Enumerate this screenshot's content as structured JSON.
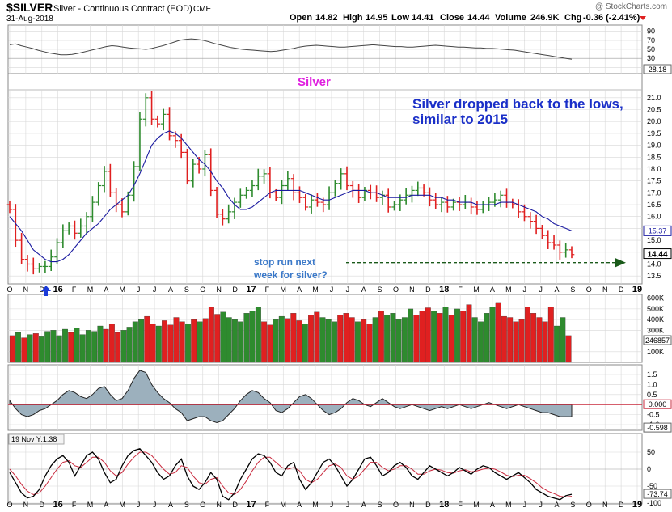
{
  "header": {
    "symbol": "$SILVER",
    "description": "Silver - Continuous Contract (EOD)",
    "exchange": "CME",
    "date": "31-Aug-2018",
    "watermark": "@ StockCharts.com",
    "quote": {
      "open_label": "Open",
      "open": "14.82",
      "high_label": "High",
      "high": "14.95",
      "low_label": "Low",
      "low": "14.41",
      "close_label": "Close",
      "close": "14.44",
      "volume_label": "Volume",
      "volume": "246.9K",
      "chg_label": "Chg",
      "chg": "-0.36 (-2.41%)"
    }
  },
  "colors": {
    "up": "#2e8b2e",
    "down": "#e02020",
    "ma": "#1a1aa0",
    "title_magenta": "#e020e0",
    "annotation_blue": "#1a2fc8",
    "annotation_light": "#3a78c8",
    "grid": "#d8d8d8",
    "arrow": "#1a5a1a",
    "hist_fill": "#9cb0bd",
    "signal": "#c8283c"
  },
  "chart_data": [
    {
      "type": "line",
      "name": "rsi-panel",
      "y_ticks": [
        "90",
        "70",
        "50",
        "30",
        "10"
      ],
      "last_value_label": "28.18",
      "ylim": [
        0,
        100
      ],
      "values": [
        60,
        62,
        58,
        55,
        52,
        48,
        45,
        42,
        40,
        38,
        38,
        39,
        41,
        44,
        47,
        50,
        53,
        56,
        58,
        57,
        55,
        53,
        52,
        51,
        50,
        52,
        55,
        58,
        62,
        66,
        70,
        72,
        73,
        72,
        70,
        67,
        63,
        60,
        57,
        54,
        52,
        50,
        49,
        48,
        47,
        46,
        45,
        46,
        48,
        50,
        52,
        55,
        57,
        58,
        59,
        58,
        57,
        56,
        55,
        55,
        56,
        57,
        58,
        59,
        60,
        59,
        58,
        57,
        56,
        56,
        55,
        55,
        56,
        57,
        58,
        59,
        58,
        57,
        56,
        55,
        55,
        54,
        53,
        53,
        52,
        52,
        51,
        50,
        49,
        48,
        46,
        44,
        42,
        40,
        38,
        36,
        34,
        32,
        30,
        28
      ]
    },
    {
      "type": "bar",
      "name": "price-panel",
      "title": "Silver",
      "ylim": [
        13.2,
        21.3
      ],
      "y_ticks": [
        "21.0",
        "20.5",
        "20.0",
        "19.5",
        "19.0",
        "18.5",
        "18.0",
        "17.5",
        "17.0",
        "16.5",
        "16.0",
        "15.5",
        "15.0",
        "14.5",
        "14.0",
        "13.5"
      ],
      "x_labels": [
        "O",
        "N",
        "D",
        "16",
        "F",
        "M",
        "A",
        "M",
        "J",
        "J",
        "A",
        "S",
        "O",
        "N",
        "D",
        "17",
        "F",
        "M",
        "A",
        "M",
        "J",
        "J",
        "A",
        "S",
        "O",
        "N",
        "D",
        "18",
        "F",
        "M",
        "A",
        "M",
        "J",
        "J",
        "A",
        "S",
        "O",
        "N",
        "D",
        "19"
      ],
      "ma_label": "15.37",
      "last_label": "14.44",
      "support_level": 14.06,
      "closes": [
        16.3,
        15.0,
        14.2,
        14.0,
        13.8,
        13.9,
        13.9,
        14.3,
        14.9,
        15.4,
        15.6,
        15.3,
        15.6,
        16.0,
        16.6,
        17.3,
        17.9,
        17.0,
        16.5,
        16.2,
        16.9,
        18.1,
        20.1,
        21.0,
        20.1,
        19.9,
        20.3,
        19.4,
        19.2,
        18.7,
        17.5,
        18.2,
        18.0,
        18.6,
        17.1,
        16.1,
        15.9,
        16.2,
        16.6,
        16.9,
        17.1,
        17.3,
        17.7,
        17.8,
        17.0,
        16.8,
        17.3,
        17.6,
        17.0,
        16.8,
        16.4,
        16.7,
        16.6,
        16.5,
        17.0,
        17.4,
        17.8,
        17.3,
        17.1,
        16.8,
        17.1,
        17.0,
        16.8,
        16.9,
        16.4,
        16.5,
        16.7,
        16.9,
        17.1,
        17.2,
        17.0,
        16.7,
        16.5,
        16.6,
        16.4,
        16.6,
        16.5,
        16.6,
        16.4,
        16.3,
        16.5,
        16.6,
        16.7,
        16.9,
        16.6,
        16.5,
        16.2,
        16.0,
        15.8,
        15.5,
        15.2,
        14.9,
        14.8,
        14.5,
        14.6,
        14.4
      ],
      "ma": [
        16.0,
        15.7,
        15.4,
        15.0,
        14.6,
        14.4,
        14.2,
        14.1,
        14.1,
        14.2,
        14.4,
        14.7,
        15.0,
        15.3,
        15.5,
        15.7,
        16.0,
        16.3,
        16.5,
        16.7,
        16.9,
        17.3,
        17.8,
        18.4,
        19.0,
        19.3,
        19.5,
        19.6,
        19.5,
        19.3,
        19.0,
        18.7,
        18.4,
        18.2,
        17.9,
        17.5,
        17.2,
        16.8,
        16.5,
        16.3,
        16.3,
        16.4,
        16.6,
        16.8,
        17.0,
        17.1,
        17.1,
        17.1,
        17.1,
        17.1,
        17.0,
        16.9,
        16.8,
        16.7,
        16.7,
        16.8,
        16.9,
        17.0,
        17.1,
        17.1,
        17.1,
        17.0,
        17.0,
        16.9,
        16.8,
        16.8,
        16.8,
        16.8,
        16.9,
        16.9,
        16.9,
        16.9,
        16.8,
        16.8,
        16.7,
        16.7,
        16.6,
        16.6,
        16.6,
        16.5,
        16.5,
        16.5,
        16.5,
        16.6,
        16.6,
        16.6,
        16.5,
        16.4,
        16.3,
        16.2,
        16.0,
        15.9,
        15.7,
        15.6,
        15.5,
        15.4
      ]
    },
    {
      "type": "bar",
      "name": "volume-panel",
      "ylim": [
        0,
        620
      ],
      "y_ticks": [
        "600K",
        "500K",
        "400K",
        "300K",
        "200K",
        "100K"
      ],
      "last_value_label": "246857",
      "values": [
        250,
        280,
        230,
        260,
        270,
        240,
        290,
        300,
        250,
        310,
        280,
        320,
        260,
        300,
        290,
        340,
        310,
        360,
        280,
        300,
        330,
        380,
        400,
        430,
        360,
        340,
        390,
        350,
        420,
        380,
        360,
        400,
        380,
        410,
        520,
        450,
        470,
        420,
        400,
        380,
        460,
        480,
        520,
        380,
        350,
        400,
        430,
        410,
        460,
        390,
        360,
        440,
        470,
        420,
        400,
        380,
        440,
        460,
        420,
        380,
        400,
        360,
        420,
        480,
        440,
        460,
        400,
        420,
        500,
        440,
        480,
        510,
        480,
        460,
        520,
        440,
        500,
        480,
        540,
        420,
        380,
        460,
        520,
        560,
        430,
        420,
        380,
        400,
        520,
        460,
        420,
        380,
        520,
        340,
        420,
        250
      ],
      "up_flags": [
        0,
        1,
        0,
        1,
        0,
        1,
        1,
        1,
        1,
        1,
        0,
        1,
        1,
        1,
        1,
        1,
        0,
        0,
        0,
        1,
        1,
        1,
        1,
        0,
        0,
        1,
        0,
        0,
        0,
        0,
        1,
        0,
        1,
        0,
        0,
        0,
        1,
        1,
        1,
        1,
        1,
        1,
        1,
        0,
        0,
        1,
        1,
        0,
        0,
        0,
        1,
        0,
        0,
        1,
        1,
        1,
        0,
        0,
        0,
        1,
        0,
        0,
        1,
        0,
        1,
        1,
        1,
        1,
        1,
        0,
        0,
        0,
        1,
        0,
        1,
        0,
        1,
        0,
        0,
        1,
        1,
        1,
        1,
        0,
        0,
        0,
        0,
        0,
        0,
        0,
        0,
        0,
        0,
        1,
        1,
        0
      ]
    },
    {
      "type": "area",
      "name": "macd-histogram-panel",
      "ylim": [
        -1.2,
        1.9
      ],
      "y_ticks": [
        "1.5",
        "1.0",
        "0.5",
        "-0.5",
        "-1.0"
      ],
      "zero_label": "0.000",
      "last_value_label": "-0.598",
      "values": [
        0.2,
        -0.2,
        -0.5,
        -0.6,
        -0.5,
        -0.3,
        -0.2,
        0.0,
        0.2,
        0.5,
        0.7,
        0.6,
        0.4,
        0.3,
        0.5,
        0.8,
        0.9,
        0.5,
        0.2,
        0.3,
        0.7,
        1.3,
        1.7,
        1.6,
        1.0,
        0.6,
        0.3,
        0.1,
        -0.2,
        -0.4,
        -0.8,
        -0.7,
        -0.6,
        -0.6,
        -0.8,
        -0.9,
        -0.8,
        -0.5,
        -0.2,
        0.2,
        0.5,
        0.7,
        0.6,
        0.3,
        0.1,
        -0.3,
        -0.4,
        -0.2,
        0.1,
        0.4,
        0.5,
        0.3,
        0.0,
        -0.3,
        -0.5,
        -0.4,
        -0.2,
        0.1,
        0.3,
        0.2,
        0.0,
        -0.1,
        0.1,
        0.3,
        0.1,
        -0.1,
        -0.2,
        -0.1,
        0.0,
        -0.1,
        -0.2,
        -0.3,
        -0.2,
        -0.1,
        -0.2,
        -0.1,
        0.0,
        -0.1,
        -0.2,
        -0.1,
        0.0,
        0.1,
        0.0,
        -0.1,
        -0.2,
        -0.1,
        0.0,
        -0.1,
        -0.2,
        -0.3,
        -0.4,
        -0.4,
        -0.5,
        -0.6,
        -0.6,
        -0.6
      ]
    },
    {
      "type": "line",
      "name": "stochastic-panel",
      "tag": "19 Nov Y:1.38",
      "ylim": [
        -100,
        100
      ],
      "y_ticks": [
        "50",
        "0",
        "-50",
        "-100"
      ],
      "last_value_label": "-73.74",
      "values": [
        -10,
        -40,
        -70,
        -85,
        -80,
        -60,
        -20,
        10,
        30,
        40,
        20,
        -20,
        10,
        40,
        50,
        30,
        -10,
        -40,
        -30,
        10,
        40,
        55,
        60,
        40,
        20,
        -10,
        -30,
        -20,
        10,
        30,
        -20,
        -50,
        -60,
        -40,
        -10,
        -30,
        -80,
        -90,
        -70,
        -30,
        0,
        30,
        45,
        40,
        20,
        -10,
        -20,
        10,
        20,
        -30,
        -60,
        -40,
        -10,
        20,
        30,
        10,
        -20,
        -50,
        -30,
        0,
        30,
        35,
        10,
        -20,
        -10,
        10,
        20,
        5,
        -20,
        -30,
        -10,
        10,
        0,
        -10,
        -20,
        -10,
        5,
        -5,
        -15,
        0,
        10,
        5,
        -10,
        -20,
        -30,
        -20,
        -10,
        -25,
        -40,
        -60,
        -70,
        -80,
        -85,
        -90,
        -78,
        -74
      ],
      "signal": [
        0,
        -20,
        -45,
        -65,
        -75,
        -70,
        -50,
        -25,
        0,
        20,
        25,
        10,
        5,
        20,
        35,
        35,
        20,
        -5,
        -20,
        -10,
        15,
        35,
        50,
        50,
        40,
        20,
        0,
        -15,
        -10,
        10,
        5,
        -20,
        -40,
        -45,
        -30,
        -25,
        -50,
        -70,
        -75,
        -60,
        -35,
        -5,
        20,
        35,
        35,
        20,
        5,
        0,
        5,
        -5,
        -30,
        -40,
        -30,
        -10,
        10,
        15,
        5,
        -20,
        -30,
        -20,
        0,
        20,
        20,
        5,
        -5,
        0,
        10,
        10,
        0,
        -15,
        -15,
        -5,
        0,
        -3,
        -10,
        -12,
        -5,
        -2,
        -8,
        -5,
        0,
        3,
        0,
        -8,
        -18,
        -22,
        -18,
        -18,
        -28,
        -40,
        -55,
        -65,
        -72,
        -80,
        -82,
        -80
      ]
    }
  ],
  "annotations": {
    "title_label": "Silver",
    "main_text_line1": "Silver dropped back to the lows,",
    "main_text_line2": "similar to 2015",
    "stop_text_line1": "stop run next",
    "stop_text_line2": "week for silver?"
  }
}
